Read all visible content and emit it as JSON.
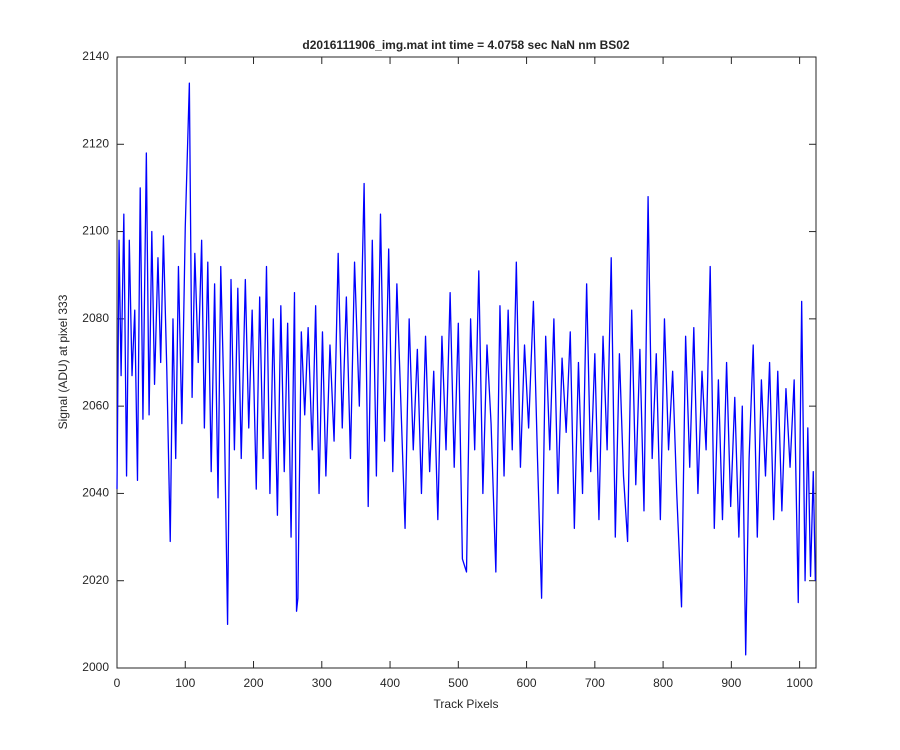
{
  "chart_data": {
    "type": "line",
    "title": "d2016111906_img.mat int time = 4.0758 sec  NaN nm BS02",
    "x_label": "Track Pixels",
    "y_label": "Signal (ADU) at pixel 333",
    "xlim": [
      0,
      1024
    ],
    "ylim": [
      2000,
      2140
    ],
    "xticks": [
      0,
      100,
      200,
      300,
      400,
      500,
      600,
      700,
      800,
      900,
      1000
    ],
    "yticks": [
      2000,
      2020,
      2040,
      2060,
      2080,
      2100,
      2120,
      2140
    ],
    "grid": false,
    "x": [
      0,
      3,
      6,
      10,
      14,
      18,
      22,
      26,
      30,
      34,
      38,
      43,
      47,
      51,
      55,
      60,
      64,
      68,
      73,
      78,
      82,
      86,
      90,
      95,
      100,
      106,
      110,
      114,
      119,
      124,
      128,
      133,
      138,
      143,
      148,
      152,
      157,
      162,
      167,
      172,
      177,
      182,
      188,
      193,
      198,
      204,
      209,
      214,
      219,
      224,
      229,
      235,
      240,
      245,
      250,
      255,
      260,
      263,
      265,
      270,
      275,
      280,
      286,
      291,
      296,
      301,
      306,
      312,
      318,
      324,
      330,
      336,
      342,
      348,
      355,
      362,
      368,
      374,
      380,
      386,
      392,
      398,
      404,
      410,
      416,
      422,
      428,
      434,
      440,
      446,
      452,
      458,
      464,
      470,
      476,
      482,
      488,
      494,
      500,
      506,
      512,
      518,
      524,
      530,
      536,
      542,
      548,
      555,
      561,
      567,
      573,
      579,
      585,
      591,
      597,
      603,
      610,
      616,
      622,
      628,
      634,
      640,
      646,
      652,
      658,
      664,
      670,
      676,
      682,
      688,
      694,
      700,
      706,
      712,
      718,
      724,
      730,
      736,
      742,
      748,
      754,
      760,
      766,
      772,
      778,
      784,
      790,
      796,
      802,
      808,
      814,
      820,
      827,
      833,
      839,
      845,
      851,
      857,
      863,
      869,
      875,
      881,
      887,
      893,
      899,
      905,
      911,
      916,
      921,
      926,
      932,
      938,
      944,
      950,
      956,
      962,
      968,
      974,
      980,
      986,
      992,
      998,
      1003,
      1008,
      1012,
      1016,
      1020,
      1023
    ],
    "series": [
      {
        "color": "#0000ff",
        "values": [
          2041,
          2098,
          2067,
          2104,
          2044,
          2098,
          2067,
          2082,
          2043,
          2110,
          2057,
          2118,
          2058,
          2100,
          2065,
          2094,
          2070,
          2099,
          2068,
          2029,
          2080,
          2048,
          2092,
          2056,
          2101,
          2134,
          2062,
          2095,
          2070,
          2098,
          2055,
          2093,
          2045,
          2088,
          2039,
          2092,
          2060,
          2010,
          2089,
          2050,
          2087,
          2048,
          2089,
          2055,
          2082,
          2041,
          2085,
          2048,
          2092,
          2040,
          2080,
          2035,
          2083,
          2045,
          2079,
          2030,
          2086,
          2013,
          2016,
          2077,
          2058,
          2078,
          2050,
          2083,
          2040,
          2077,
          2044,
          2074,
          2052,
          2095,
          2055,
          2085,
          2048,
          2093,
          2060,
          2111,
          2037,
          2098,
          2044,
          2104,
          2052,
          2096,
          2045,
          2088,
          2060,
          2032,
          2080,
          2050,
          2073,
          2040,
          2076,
          2045,
          2068,
          2034,
          2076,
          2050,
          2086,
          2046,
          2079,
          2025,
          2022,
          2080,
          2050,
          2091,
          2040,
          2074,
          2056,
          2022,
          2083,
          2044,
          2082,
          2050,
          2093,
          2046,
          2074,
          2055,
          2084,
          2048,
          2016,
          2076,
          2050,
          2080,
          2040,
          2071,
          2054,
          2077,
          2032,
          2070,
          2040,
          2088,
          2045,
          2072,
          2034,
          2076,
          2050,
          2094,
          2030,
          2072,
          2044,
          2029,
          2082,
          2042,
          2073,
          2036,
          2108,
          2048,
          2072,
          2034,
          2080,
          2050,
          2068,
          2040,
          2014,
          2076,
          2046,
          2078,
          2040,
          2068,
          2050,
          2092,
          2032,
          2066,
          2034,
          2070,
          2037,
          2062,
          2030,
          2060,
          2003,
          2048,
          2074,
          2030,
          2066,
          2044,
          2070,
          2034,
          2068,
          2036,
          2064,
          2046,
          2066,
          2015,
          2084,
          2020,
          2055,
          2021,
          2045,
          2020
        ]
      }
    ]
  }
}
